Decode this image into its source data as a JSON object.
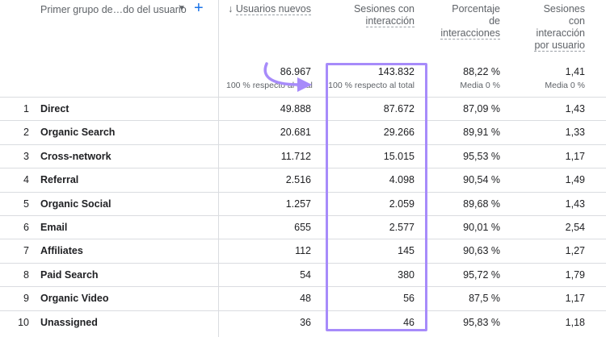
{
  "header": {
    "dimension_label": "Primer grupo de…do del usuario",
    "add_icon": "plus-icon",
    "dropdown_icon": "caret-down-icon",
    "sort_icon": "arrow-down-icon",
    "columns": [
      {
        "lines": [
          "Usuarios nuevos"
        ],
        "sorted": true
      },
      {
        "lines": [
          "Sesiones con",
          "interacción"
        ]
      },
      {
        "lines": [
          "Porcentaje",
          "de",
          "interacciones"
        ]
      },
      {
        "lines": [
          "Sesiones",
          "con",
          "interacción",
          "por usuario"
        ]
      }
    ]
  },
  "totals": [
    {
      "value": "86.967",
      "sub": "100 % respecto al total"
    },
    {
      "value": "143.832",
      "sub": "100 % respecto al total"
    },
    {
      "value": "88,22 %",
      "sub": "Media 0 %"
    },
    {
      "value": "1,41",
      "sub": "Media 0 %"
    }
  ],
  "rows": [
    {
      "idx": "1",
      "name": "Direct",
      "c1": "49.888",
      "c2": "87.672",
      "c3": "87,09 %",
      "c4": "1,43"
    },
    {
      "idx": "2",
      "name": "Organic Search",
      "c1": "20.681",
      "c2": "29.266",
      "c3": "89,91 %",
      "c4": "1,33"
    },
    {
      "idx": "3",
      "name": "Cross-network",
      "c1": "11.712",
      "c2": "15.015",
      "c3": "95,53 %",
      "c4": "1,17"
    },
    {
      "idx": "4",
      "name": "Referral",
      "c1": "2.516",
      "c2": "4.098",
      "c3": "90,54 %",
      "c4": "1,49"
    },
    {
      "idx": "5",
      "name": "Organic Social",
      "c1": "1.257",
      "c2": "2.059",
      "c3": "89,68 %",
      "c4": "1,43"
    },
    {
      "idx": "6",
      "name": "Email",
      "c1": "655",
      "c2": "2.577",
      "c3": "90,01 %",
      "c4": "2,54"
    },
    {
      "idx": "7",
      "name": "Affiliates",
      "c1": "112",
      "c2": "145",
      "c3": "90,63 %",
      "c4": "1,27"
    },
    {
      "idx": "8",
      "name": "Paid Search",
      "c1": "54",
      "c2": "380",
      "c3": "95,72 %",
      "c4": "1,79"
    },
    {
      "idx": "9",
      "name": "Organic Video",
      "c1": "48",
      "c2": "56",
      "c3": "87,5 %",
      "c4": "1,17"
    },
    {
      "idx": "10",
      "name": "Unassigned",
      "c1": "36",
      "c2": "46",
      "c3": "95,83 %",
      "c4": "1,18"
    }
  ],
  "colors": {
    "highlight": "#a78bfa",
    "accent": "#1a73e8",
    "grid": "#dadce0"
  }
}
